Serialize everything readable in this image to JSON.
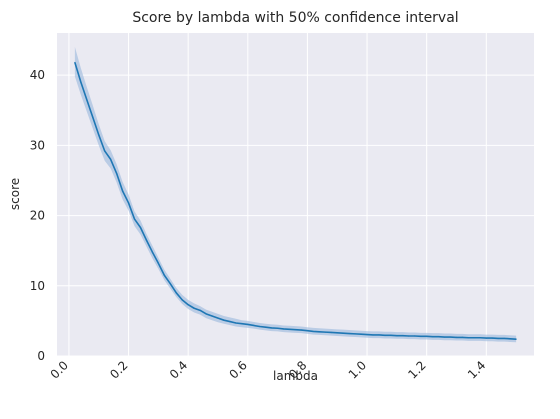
{
  "chart_data": {
    "type": "line",
    "title": "Score by lambda with 50% confidence interval",
    "xlabel": "lambda",
    "ylabel": "score",
    "xlim": [
      -0.04,
      1.56
    ],
    "ylim": [
      0,
      46
    ],
    "grid": true,
    "x_ticks": [
      0.0,
      0.2,
      0.4,
      0.6,
      0.8,
      1.0,
      1.2,
      1.4
    ],
    "x_tick_labels": [
      "0.0",
      "0.2",
      "0.4",
      "0.6",
      "0.8",
      "1.0",
      "1.2",
      "1.4"
    ],
    "y_ticks": [
      0,
      10,
      20,
      30,
      40
    ],
    "y_tick_labels": [
      "0",
      "10",
      "20",
      "30",
      "40"
    ],
    "colors": {
      "line": "#1f77b4",
      "band": "#9ab8dc",
      "background": "#eaeaf2",
      "grid": "#ffffff"
    },
    "series": [
      {
        "x": [
          0.02,
          0.04,
          0.06,
          0.08,
          0.1,
          0.12,
          0.14,
          0.16,
          0.18,
          0.2,
          0.22,
          0.24,
          0.26,
          0.28,
          0.3,
          0.32,
          0.34,
          0.36,
          0.38,
          0.4,
          0.42,
          0.44,
          0.46,
          0.48,
          0.5,
          0.52,
          0.54,
          0.56,
          0.58,
          0.6,
          0.62,
          0.64,
          0.66,
          0.68,
          0.7,
          0.72,
          0.74,
          0.76,
          0.78,
          0.8,
          0.82,
          0.84,
          0.86,
          0.88,
          0.9,
          0.92,
          0.94,
          0.96,
          0.98,
          1.0,
          1.02,
          1.04,
          1.06,
          1.08,
          1.1,
          1.12,
          1.14,
          1.16,
          1.18,
          1.2,
          1.22,
          1.24,
          1.26,
          1.28,
          1.3,
          1.32,
          1.34,
          1.36,
          1.38,
          1.4,
          1.42,
          1.44,
          1.46,
          1.48,
          1.5
        ],
        "y": [
          41.8,
          39.0,
          36.5,
          34.0,
          31.5,
          29.2,
          28.0,
          26.0,
          23.5,
          21.8,
          19.5,
          18.3,
          16.5,
          14.8,
          13.2,
          11.5,
          10.3,
          9.0,
          8.0,
          7.3,
          6.8,
          6.5,
          6.0,
          5.7,
          5.4,
          5.1,
          4.9,
          4.7,
          4.6,
          4.5,
          4.35,
          4.2,
          4.1,
          4.0,
          3.95,
          3.85,
          3.8,
          3.75,
          3.7,
          3.6,
          3.5,
          3.45,
          3.4,
          3.35,
          3.3,
          3.25,
          3.2,
          3.15,
          3.1,
          3.05,
          3.0,
          3.0,
          2.95,
          2.95,
          2.9,
          2.9,
          2.85,
          2.85,
          2.8,
          2.8,
          2.75,
          2.75,
          2.7,
          2.7,
          2.65,
          2.65,
          2.6,
          2.6,
          2.6,
          2.55,
          2.55,
          2.5,
          2.5,
          2.45,
          2.4
        ],
        "ci_low": [
          39.8,
          37.2,
          34.8,
          32.4,
          30.0,
          27.8,
          26.7,
          24.7,
          22.3,
          20.7,
          18.5,
          17.3,
          15.6,
          13.9,
          12.4,
          10.8,
          9.6,
          8.4,
          7.4,
          6.7,
          6.2,
          5.9,
          5.4,
          5.1,
          4.8,
          4.6,
          4.4,
          4.2,
          4.1,
          4.0,
          3.9,
          3.75,
          3.65,
          3.55,
          3.5,
          3.4,
          3.35,
          3.3,
          3.25,
          3.15,
          3.05,
          3.0,
          2.95,
          2.9,
          2.85,
          2.8,
          2.75,
          2.7,
          2.65,
          2.6,
          2.55,
          2.55,
          2.5,
          2.5,
          2.45,
          2.45,
          2.4,
          2.4,
          2.35,
          2.35,
          2.3,
          2.3,
          2.25,
          2.25,
          2.2,
          2.2,
          2.15,
          2.15,
          2.15,
          2.1,
          2.1,
          2.05,
          2.05,
          2.0,
          1.95
        ],
        "ci_high": [
          44.0,
          41.0,
          38.3,
          35.7,
          33.0,
          30.6,
          29.3,
          27.3,
          24.8,
          23.0,
          20.6,
          19.3,
          17.4,
          15.7,
          14.0,
          12.3,
          11.0,
          9.7,
          8.7,
          8.0,
          7.5,
          7.1,
          6.6,
          6.3,
          6.0,
          5.7,
          5.5,
          5.3,
          5.1,
          5.0,
          4.85,
          4.7,
          4.6,
          4.5,
          4.45,
          4.35,
          4.3,
          4.25,
          4.2,
          4.1,
          4.0,
          3.95,
          3.9,
          3.85,
          3.8,
          3.75,
          3.7,
          3.65,
          3.6,
          3.55,
          3.5,
          3.5,
          3.45,
          3.45,
          3.4,
          3.4,
          3.35,
          3.35,
          3.3,
          3.3,
          3.25,
          3.25,
          3.2,
          3.2,
          3.15,
          3.15,
          3.1,
          3.1,
          3.1,
          3.05,
          3.05,
          3.0,
          3.0,
          2.95,
          2.9
        ]
      }
    ]
  }
}
